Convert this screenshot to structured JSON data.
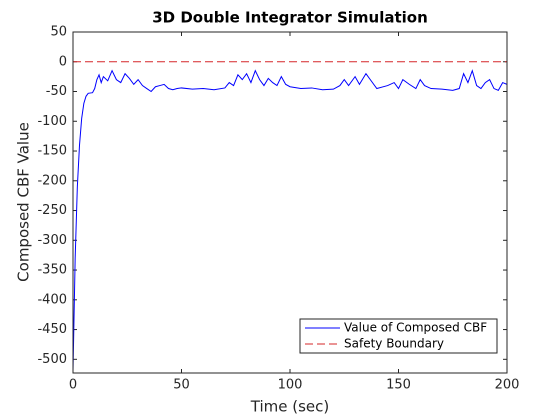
{
  "chart_data": {
    "type": "line",
    "title": "3D Double Integrator Simulation",
    "x_label": "Time (sec)",
    "y_label": "Composed CBF Value",
    "xlim": [
      0,
      200
    ],
    "xticks": [
      0,
      50,
      100,
      150,
      200
    ],
    "ylim": [
      -523,
      50
    ],
    "yticks": [
      50,
      0,
      -50,
      -100,
      -150,
      -200,
      -250,
      -300,
      -350,
      -400,
      -450,
      -500
    ],
    "legend": "lower right",
    "series": [
      {
        "name": "Value of Composed CBF",
        "color": "#0000ff",
        "style": "solid",
        "x": [
          0,
          1,
          2,
          3,
          4,
          5,
          6,
          7,
          9,
          10,
          11,
          12,
          13,
          14,
          16,
          18,
          20,
          22,
          24,
          26,
          28,
          30,
          32,
          34,
          36,
          38,
          40,
          42,
          44,
          46,
          48,
          50,
          55,
          60,
          65,
          70,
          72,
          74,
          76,
          78,
          80,
          82,
          84,
          86,
          88,
          90,
          92,
          94,
          96,
          98,
          100,
          105,
          110,
          115,
          120,
          123,
          125,
          127,
          130,
          132,
          135,
          137,
          140,
          145,
          148,
          150,
          152,
          155,
          158,
          160,
          162,
          165,
          170,
          175,
          178,
          180,
          182,
          184,
          186,
          188,
          190,
          192,
          194,
          196,
          198,
          200
        ],
        "values": [
          -520,
          -330,
          -210,
          -140,
          -95,
          -70,
          -58,
          -53,
          -52,
          -45,
          -30,
          -22,
          -35,
          -25,
          -32,
          -15,
          -30,
          -35,
          -20,
          -28,
          -38,
          -30,
          -40,
          -45,
          -50,
          -42,
          -40,
          -38,
          -45,
          -47,
          -45,
          -44,
          -46,
          -45,
          -47,
          -44,
          -35,
          -40,
          -22,
          -30,
          -20,
          -35,
          -15,
          -30,
          -40,
          -28,
          -35,
          -40,
          -25,
          -38,
          -42,
          -45,
          -44,
          -47,
          -46,
          -40,
          -30,
          -40,
          -25,
          -38,
          -20,
          -30,
          -45,
          -40,
          -35,
          -45,
          -30,
          -38,
          -45,
          -30,
          -40,
          -45,
          -46,
          -48,
          -45,
          -20,
          -35,
          -15,
          -40,
          -45,
          -35,
          -30,
          -45,
          -48,
          -35,
          -38
        ]
      },
      {
        "name": "Safety Boundary",
        "color": "#d62728",
        "style": "dashed",
        "x": [
          0,
          200
        ],
        "values": [
          0,
          0
        ]
      }
    ]
  }
}
